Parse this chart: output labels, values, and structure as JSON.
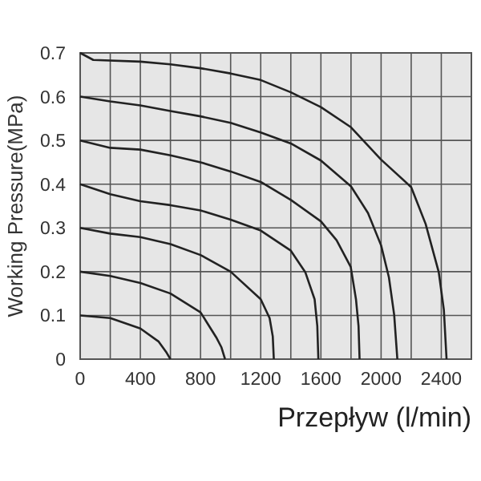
{
  "chart_data": {
    "type": "line",
    "xlabel": "Przepływ (l/min)",
    "ylabel": "Working Pressure(MPa)",
    "xlim": [
      0,
      2600
    ],
    "ylim": [
      0,
      0.7
    ],
    "xticks": [
      0,
      {
        "value": 200,
        "label": null
      },
      400,
      {
        "value": 600,
        "label": null
      },
      800,
      {
        "value": 1000,
        "label": null
      },
      1200,
      {
        "value": 1400,
        "label": null
      },
      1600,
      {
        "value": 1800,
        "label": null
      },
      2000,
      {
        "value": 2200,
        "label": null
      },
      2400
    ],
    "yticks": [
      0,
      0.1,
      0.2,
      0.3,
      0.4,
      0.5,
      0.6,
      0.7
    ],
    "grid": true,
    "marker": "none",
    "line_style": "solid",
    "series": [
      {
        "color": "#222222",
        "x": [
          0,
          200,
          400,
          522,
          574,
          600
        ],
        "values": [
          0.1,
          0.094,
          0.07,
          0.04,
          0.015,
          0
        ]
      },
      {
        "color": "#222222",
        "x": [
          0,
          200,
          400,
          600,
          800,
          904,
          939,
          963
        ],
        "values": [
          0.2,
          0.19,
          0.174,
          0.15,
          0.107,
          0.05,
          0.027,
          0
        ]
      },
      {
        "color": "#222222",
        "x": [
          0,
          200,
          400,
          600,
          800,
          1000,
          1200,
          1259,
          1280,
          1287
        ],
        "values": [
          0.3,
          0.287,
          0.279,
          0.263,
          0.238,
          0.2,
          0.137,
          0.094,
          0.052,
          0
        ]
      },
      {
        "color": "#222222",
        "x": [
          0,
          200,
          400,
          600,
          800,
          1000,
          1200,
          1400,
          1496,
          1558,
          1576,
          1583
        ],
        "values": [
          0.4,
          0.377,
          0.361,
          0.352,
          0.34,
          0.319,
          0.294,
          0.248,
          0.199,
          0.137,
          0.076,
          0
        ]
      },
      {
        "color": "#222222",
        "x": [
          0,
          200,
          400,
          600,
          800,
          1000,
          1200,
          1400,
          1600,
          1704,
          1798,
          1833,
          1850,
          1857
        ],
        "values": [
          0.5,
          0.483,
          0.479,
          0.466,
          0.45,
          0.429,
          0.405,
          0.364,
          0.315,
          0.272,
          0.211,
          0.137,
          0.076,
          0
        ]
      },
      {
        "color": "#222222",
        "x": [
          0,
          200,
          400,
          600,
          800,
          1000,
          1200,
          1400,
          1600,
          1800,
          1913,
          2000,
          2052,
          2087,
          2108
        ],
        "values": [
          0.6,
          0.589,
          0.58,
          0.567,
          0.555,
          0.54,
          0.518,
          0.493,
          0.454,
          0.395,
          0.334,
          0.26,
          0.187,
          0.101,
          0
        ]
      },
      {
        "color": "#222222",
        "x": [
          0,
          87,
          400,
          600,
          800,
          1000,
          1200,
          1400,
          1600,
          1800,
          2000,
          2200,
          2296,
          2383,
          2417,
          2435
        ],
        "values": [
          0.7,
          0.684,
          0.68,
          0.674,
          0.665,
          0.653,
          0.638,
          0.61,
          0.576,
          0.53,
          0.456,
          0.393,
          0.309,
          0.199,
          0.113,
          0
        ]
      }
    ]
  }
}
